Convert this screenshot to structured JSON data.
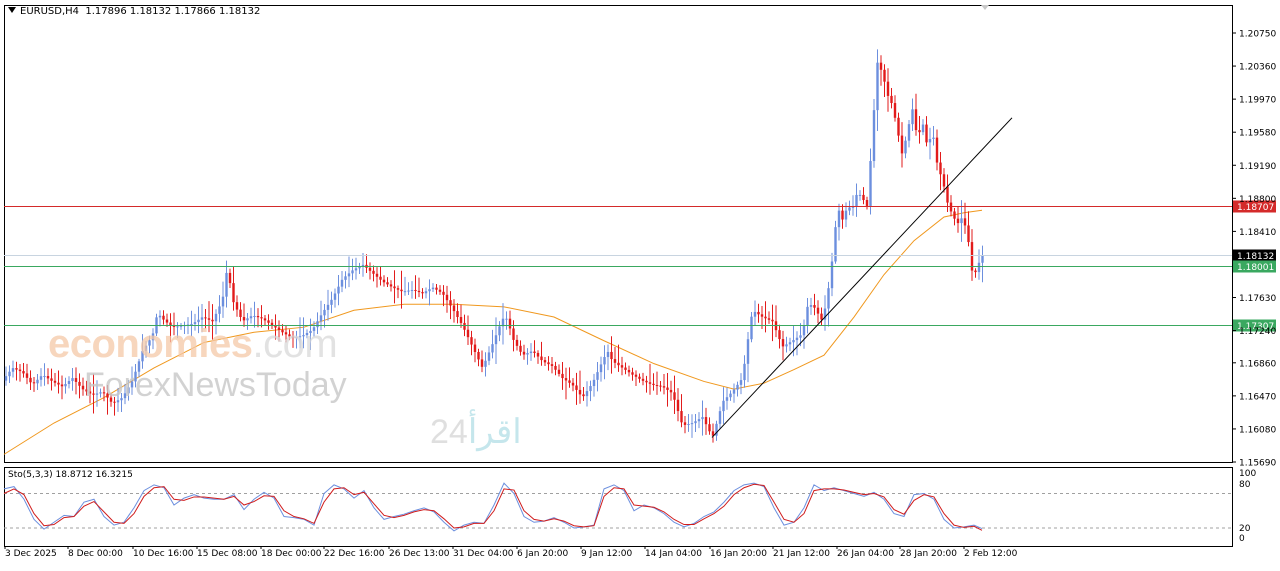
{
  "header": {
    "symbol": "EURUSD,H4",
    "ohlc": "1.17896 1.18132 1.17866 1.18132"
  },
  "stochastic": {
    "label": "Sto(5,3,3) 18.8712 16.3215",
    "levels": [
      100,
      80,
      20,
      0
    ],
    "level_labels": [
      "100",
      "80",
      "20",
      "0"
    ]
  },
  "watermarks": {
    "brand1": "economies",
    "brand1_suffix": ".com",
    "brand2": "ForexNewsToday",
    "brand3": "اقرأ",
    "brand3_num": "24"
  },
  "colors": {
    "bull": "#6c8fde",
    "bear": "#e21b1b",
    "ma": "#f0981e",
    "hline_red": "#d42a2a",
    "hline_green": "#3aa860",
    "stoch_main": "#6c8fde",
    "stoch_signal": "#d01c1c"
  },
  "chart_data": {
    "type": "candlestick",
    "timeframe": "H4",
    "ylim": [
      1.1569,
      1.2075
    ],
    "price_ticks": [
      "1.20750",
      "1.20360",
      "1.19970",
      "1.19580",
      "1.19190",
      "1.18800",
      "1.18410",
      "1.17630",
      "1.17240",
      "1.16860",
      "1.16470",
      "1.16080",
      "1.15690"
    ],
    "time_labels": [
      "3 Dec 2025",
      "8 Dec 00:00",
      "10 Dec 16:00",
      "15 Dec 08:00",
      "18 Dec 00:00",
      "22 Dec 16:00",
      "26 Dec 13:00",
      "31 Dec 04:00",
      "6 Jan 20:00",
      "9 Jan 12:00",
      "14 Jan 04:00",
      "16 Jan 20:00",
      "21 Jan 12:00",
      "26 Jan 04:00",
      "28 Jan 20:00",
      "2 Feb 12:00"
    ],
    "price_series": [
      [
        0,
        1.1665
      ],
      [
        10,
        1.168
      ],
      [
        20,
        1.1675
      ],
      [
        30,
        1.166
      ],
      [
        40,
        1.1672
      ],
      [
        50,
        1.1664
      ],
      [
        60,
        1.1658
      ],
      [
        70,
        1.1668
      ],
      [
        80,
        1.1655
      ],
      [
        90,
        1.1648
      ],
      [
        100,
        1.1652
      ],
      [
        110,
        1.1638
      ],
      [
        120,
        1.1645
      ],
      [
        130,
        1.1665
      ],
      [
        140,
        1.17
      ],
      [
        150,
        1.1718
      ],
      [
        155,
        1.1745
      ],
      [
        160,
        1.1738
      ],
      [
        170,
        1.1728
      ],
      [
        180,
        1.173
      ],
      [
        190,
        1.1732
      ],
      [
        200,
        1.174
      ],
      [
        210,
        1.1735
      ],
      [
        220,
        1.176
      ],
      [
        225,
        1.18
      ],
      [
        230,
        1.176
      ],
      [
        240,
        1.1735
      ],
      [
        250,
        1.1742
      ],
      [
        260,
        1.1738
      ],
      [
        270,
        1.173
      ],
      [
        280,
        1.1722
      ],
      [
        290,
        1.1715
      ],
      [
        300,
        1.1718
      ],
      [
        310,
        1.1725
      ],
      [
        320,
        1.1745
      ],
      [
        330,
        1.1762
      ],
      [
        340,
        1.1785
      ],
      [
        350,
        1.1795
      ],
      [
        360,
        1.1802
      ],
      [
        370,
        1.1792
      ],
      [
        380,
        1.1782
      ],
      [
        390,
        1.1775
      ],
      [
        400,
        1.177
      ],
      [
        410,
        1.1772
      ],
      [
        420,
        1.1768
      ],
      [
        430,
        1.1775
      ],
      [
        440,
        1.1768
      ],
      [
        450,
        1.175
      ],
      [
        460,
        1.173
      ],
      [
        470,
        1.1705
      ],
      [
        480,
        1.168
      ],
      [
        490,
        1.1708
      ],
      [
        500,
        1.1738
      ],
      [
        505,
        1.1738
      ],
      [
        510,
        1.1715
      ],
      [
        520,
        1.1695
      ],
      [
        530,
        1.17
      ],
      [
        540,
        1.1688
      ],
      [
        550,
        1.1682
      ],
      [
        560,
        1.1668
      ],
      [
        570,
        1.166
      ],
      [
        580,
        1.1645
      ],
      [
        590,
        1.1662
      ],
      [
        600,
        1.1688
      ],
      [
        605,
        1.17
      ],
      [
        610,
        1.1688
      ],
      [
        620,
        1.168
      ],
      [
        630,
        1.1672
      ],
      [
        640,
        1.1665
      ],
      [
        650,
        1.166
      ],
      [
        660,
        1.1658
      ],
      [
        670,
        1.165
      ],
      [
        680,
        1.1612
      ],
      [
        690,
        1.1615
      ],
      [
        700,
        1.1622
      ],
      [
        705,
        1.161
      ],
      [
        710,
        1.1598
      ],
      [
        715,
        1.1618
      ],
      [
        720,
        1.164
      ],
      [
        730,
        1.1652
      ],
      [
        740,
        1.1668
      ],
      [
        745,
        1.171
      ],
      [
        750,
        1.1748
      ],
      [
        760,
        1.174
      ],
      [
        770,
        1.1735
      ],
      [
        780,
        1.1705
      ],
      [
        790,
        1.1712
      ],
      [
        800,
        1.172
      ],
      [
        805,
        1.1752
      ],
      [
        810,
        1.1755
      ],
      [
        820,
        1.1735
      ],
      [
        825,
        1.1765
      ],
      [
        830,
        1.181
      ],
      [
        835,
        1.187
      ],
      [
        840,
        1.1855
      ],
      [
        845,
        1.187
      ],
      [
        850,
        1.1868
      ],
      [
        855,
        1.1888
      ],
      [
        860,
        1.188
      ],
      [
        865,
        1.187
      ],
      [
        870,
        1.196
      ],
      [
        875,
        1.204
      ],
      [
        880,
        1.2028
      ],
      [
        885,
        1.2002
      ],
      [
        890,
        1.199
      ],
      [
        895,
        1.196
      ],
      [
        900,
        1.193
      ],
      [
        905,
        1.196
      ],
      [
        910,
        1.1985
      ],
      [
        915,
        1.195
      ],
      [
        920,
        1.197
      ],
      [
        925,
        1.194
      ],
      [
        930,
        1.196
      ],
      [
        935,
        1.1918
      ],
      [
        940,
        1.1902
      ],
      [
        945,
        1.1875
      ],
      [
        950,
        1.186
      ],
      [
        955,
        1.185
      ],
      [
        960,
        1.1858
      ],
      [
        965,
        1.1838
      ],
      [
        970,
        1.179
      ],
      [
        975,
        1.1795
      ],
      [
        978,
        1.1813
      ]
    ],
    "moving_average": [
      [
        0,
        1.1578
      ],
      [
        50,
        1.1615
      ],
      [
        100,
        1.1645
      ],
      [
        150,
        1.168
      ],
      [
        200,
        1.171
      ],
      [
        250,
        1.1722
      ],
      [
        300,
        1.1728
      ],
      [
        350,
        1.1748
      ],
      [
        400,
        1.1755
      ],
      [
        450,
        1.1755
      ],
      [
        500,
        1.1752
      ],
      [
        550,
        1.174
      ],
      [
        600,
        1.1712
      ],
      [
        650,
        1.1685
      ],
      [
        700,
        1.1664
      ],
      [
        730,
        1.1655
      ],
      [
        760,
        1.1662
      ],
      [
        790,
        1.1678
      ],
      [
        820,
        1.1695
      ],
      [
        850,
        1.174
      ],
      [
        880,
        1.179
      ],
      [
        910,
        1.183
      ],
      [
        940,
        1.1858
      ],
      [
        960,
        1.1863
      ],
      [
        978,
        1.1866
      ]
    ],
    "trendline": {
      "start": [
        712,
        1.1598
      ],
      "end": [
        1012,
        1.1975
      ]
    },
    "horizontal_levels": [
      {
        "price": 1.18707,
        "label": "1.18707",
        "color": "red"
      },
      {
        "price": 1.18132,
        "label": "1.18132",
        "color": "current"
      },
      {
        "price": 1.18001,
        "label": "1.18001",
        "color": "green"
      },
      {
        "price": 1.17307,
        "label": "1.17307",
        "color": "green"
      }
    ],
    "stochastic_main": [
      [
        0,
        88
      ],
      [
        10,
        92
      ],
      [
        20,
        70
      ],
      [
        30,
        35
      ],
      [
        40,
        18
      ],
      [
        50,
        30
      ],
      [
        60,
        42
      ],
      [
        70,
        40
      ],
      [
        80,
        65
      ],
      [
        90,
        70
      ],
      [
        100,
        40
      ],
      [
        110,
        25
      ],
      [
        120,
        30
      ],
      [
        130,
        55
      ],
      [
        140,
        85
      ],
      [
        150,
        95
      ],
      [
        160,
        90
      ],
      [
        170,
        60
      ],
      [
        180,
        72
      ],
      [
        190,
        78
      ],
      [
        200,
        72
      ],
      [
        210,
        70
      ],
      [
        220,
        70
      ],
      [
        230,
        78
      ],
      [
        240,
        52
      ],
      [
        250,
        70
      ],
      [
        260,
        82
      ],
      [
        270,
        72
      ],
      [
        280,
        40
      ],
      [
        290,
        38
      ],
      [
        300,
        35
      ],
      [
        310,
        25
      ],
      [
        320,
        80
      ],
      [
        330,
        95
      ],
      [
        340,
        88
      ],
      [
        350,
        72
      ],
      [
        360,
        85
      ],
      [
        370,
        55
      ],
      [
        380,
        35
      ],
      [
        390,
        40
      ],
      [
        400,
        44
      ],
      [
        410,
        50
      ],
      [
        420,
        55
      ],
      [
        430,
        48
      ],
      [
        440,
        30
      ],
      [
        450,
        15
      ],
      [
        460,
        25
      ],
      [
        470,
        30
      ],
      [
        480,
        28
      ],
      [
        490,
        60
      ],
      [
        500,
        98
      ],
      [
        510,
        80
      ],
      [
        520,
        40
      ],
      [
        530,
        30
      ],
      [
        540,
        32
      ],
      [
        550,
        38
      ],
      [
        560,
        30
      ],
      [
        570,
        20
      ],
      [
        580,
        22
      ],
      [
        590,
        25
      ],
      [
        600,
        88
      ],
      [
        610,
        95
      ],
      [
        620,
        85
      ],
      [
        630,
        50
      ],
      [
        640,
        60
      ],
      [
        650,
        55
      ],
      [
        660,
        45
      ],
      [
        670,
        30
      ],
      [
        680,
        22
      ],
      [
        690,
        28
      ],
      [
        700,
        40
      ],
      [
        710,
        48
      ],
      [
        720,
        65
      ],
      [
        730,
        85
      ],
      [
        740,
        95
      ],
      [
        750,
        98
      ],
      [
        760,
        92
      ],
      [
        770,
        55
      ],
      [
        780,
        25
      ],
      [
        790,
        30
      ],
      [
        800,
        55
      ],
      [
        810,
        95
      ],
      [
        820,
        85
      ],
      [
        830,
        90
      ],
      [
        840,
        85
      ],
      [
        850,
        80
      ],
      [
        860,
        75
      ],
      [
        870,
        82
      ],
      [
        880,
        70
      ],
      [
        890,
        45
      ],
      [
        900,
        40
      ],
      [
        910,
        78
      ],
      [
        920,
        80
      ],
      [
        930,
        70
      ],
      [
        940,
        35
      ],
      [
        950,
        20
      ],
      [
        960,
        22
      ],
      [
        970,
        25
      ],
      [
        978,
        19
      ]
    ],
    "stochastic_signal": [
      [
        0,
        80
      ],
      [
        10,
        88
      ],
      [
        20,
        78
      ],
      [
        30,
        45
      ],
      [
        40,
        24
      ],
      [
        50,
        26
      ],
      [
        60,
        38
      ],
      [
        70,
        40
      ],
      [
        80,
        58
      ],
      [
        90,
        66
      ],
      [
        100,
        48
      ],
      [
        110,
        30
      ],
      [
        120,
        28
      ],
      [
        130,
        45
      ],
      [
        140,
        75
      ],
      [
        150,
        90
      ],
      [
        160,
        92
      ],
      [
        170,
        70
      ],
      [
        180,
        68
      ],
      [
        190,
        74
      ],
      [
        200,
        74
      ],
      [
        210,
        72
      ],
      [
        220,
        70
      ],
      [
        230,
        75
      ],
      [
        240,
        60
      ],
      [
        250,
        66
      ],
      [
        260,
        76
      ],
      [
        270,
        75
      ],
      [
        280,
        50
      ],
      [
        290,
        40
      ],
      [
        300,
        36
      ],
      [
        310,
        28
      ],
      [
        320,
        65
      ],
      [
        330,
        88
      ],
      [
        340,
        90
      ],
      [
        350,
        78
      ],
      [
        360,
        82
      ],
      [
        370,
        62
      ],
      [
        380,
        42
      ],
      [
        390,
        38
      ],
      [
        400,
        42
      ],
      [
        410,
        48
      ],
      [
        420,
        52
      ],
      [
        430,
        50
      ],
      [
        440,
        36
      ],
      [
        450,
        20
      ],
      [
        460,
        22
      ],
      [
        470,
        28
      ],
      [
        480,
        28
      ],
      [
        490,
        50
      ],
      [
        500,
        88
      ],
      [
        510,
        86
      ],
      [
        520,
        50
      ],
      [
        530,
        35
      ],
      [
        540,
        32
      ],
      [
        550,
        36
      ],
      [
        560,
        32
      ],
      [
        570,
        24
      ],
      [
        580,
        22
      ],
      [
        590,
        24
      ],
      [
        600,
        75
      ],
      [
        610,
        90
      ],
      [
        620,
        88
      ],
      [
        630,
        60
      ],
      [
        640,
        58
      ],
      [
        650,
        56
      ],
      [
        660,
        48
      ],
      [
        670,
        35
      ],
      [
        680,
        26
      ],
      [
        690,
        26
      ],
      [
        700,
        36
      ],
      [
        710,
        45
      ],
      [
        720,
        58
      ],
      [
        730,
        78
      ],
      [
        740,
        90
      ],
      [
        750,
        96
      ],
      [
        760,
        94
      ],
      [
        770,
        65
      ],
      [
        780,
        35
      ],
      [
        790,
        30
      ],
      [
        800,
        45
      ],
      [
        810,
        85
      ],
      [
        820,
        88
      ],
      [
        830,
        88
      ],
      [
        840,
        86
      ],
      [
        850,
        82
      ],
      [
        860,
        78
      ],
      [
        870,
        80
      ],
      [
        880,
        74
      ],
      [
        890,
        52
      ],
      [
        900,
        44
      ],
      [
        910,
        68
      ],
      [
        920,
        78
      ],
      [
        930,
        74
      ],
      [
        940,
        45
      ],
      [
        950,
        25
      ],
      [
        960,
        21
      ],
      [
        970,
        23
      ],
      [
        978,
        16
      ]
    ]
  }
}
